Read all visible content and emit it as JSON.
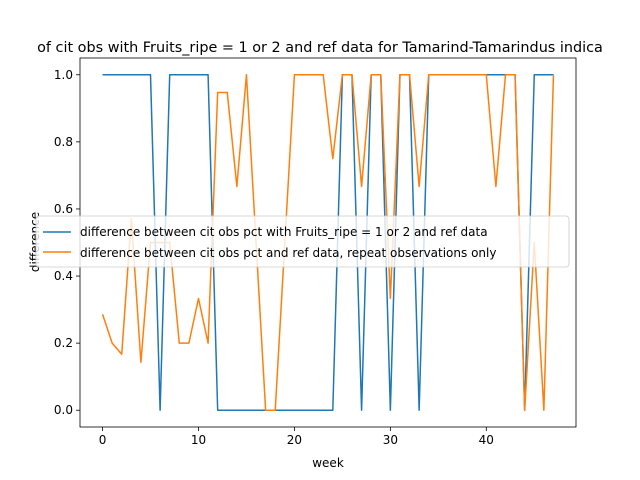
{
  "chart_data": {
    "type": "line",
    "title": "of cit obs with Fruits_ripe = 1 or 2 and ref data for Tamarind-Tamarindus indica",
    "xlabel": "week",
    "ylabel": "difference",
    "xlim": [
      -2.35,
      49.35
    ],
    "ylim": [
      -0.05,
      1.05
    ],
    "xticks": [
      0,
      10,
      20,
      30,
      40
    ],
    "yticks": [
      0.0,
      0.2,
      0.4,
      0.6,
      0.8,
      1.0
    ],
    "xtick_labels": [
      "0",
      "10",
      "20",
      "30",
      "40"
    ],
    "ytick_labels": [
      "0.0",
      "0.2",
      "0.4",
      "0.6",
      "0.8",
      "1.0"
    ],
    "grid": false,
    "legend_position": "center",
    "series": [
      {
        "name": "difference between cit obs pct with Fruits_ripe = 1 or 2 and ref data",
        "color": "#1f77b4",
        "x": [
          0,
          1,
          2,
          3,
          4,
          5,
          6,
          7,
          8,
          9,
          10,
          11,
          12,
          13,
          14,
          15,
          16,
          17,
          18,
          19,
          20,
          21,
          22,
          23,
          24,
          25,
          26,
          27,
          28,
          29,
          30,
          31,
          32,
          33,
          34,
          35,
          36,
          37,
          38,
          39,
          40,
          41,
          42,
          43,
          44,
          45,
          46,
          47
        ],
        "y": [
          1,
          1,
          1,
          1,
          1,
          1,
          0,
          1,
          1,
          1,
          1,
          1,
          0,
          0,
          0,
          0,
          0,
          0,
          0,
          0,
          0,
          0,
          0,
          0,
          0,
          1,
          1,
          0,
          1,
          1,
          0,
          1,
          1,
          0,
          1,
          1,
          1,
          1,
          1,
          1,
          1,
          1,
          1,
          1,
          0,
          1,
          1,
          1
        ]
      },
      {
        "name": "difference between cit obs pct and ref data, repeat observations only",
        "color": "#ff7f0e",
        "x": [
          0,
          1,
          2,
          3,
          4,
          5,
          6,
          7,
          8,
          9,
          10,
          11,
          12,
          13,
          14,
          15,
          16,
          17,
          18,
          19,
          20,
          21,
          22,
          23,
          24,
          25,
          26,
          27,
          28,
          29,
          30,
          31,
          32,
          33,
          34,
          35,
          36,
          37,
          38,
          39,
          40,
          41,
          42,
          43,
          44,
          45,
          46,
          47
        ],
        "y": [
          0.286,
          0.2,
          0.167,
          0.571,
          0.143,
          0.5,
          0.5,
          0.5,
          0.2,
          0.2,
          0.333,
          0.2,
          0.947,
          0.947,
          0.667,
          1,
          0.5,
          0,
          0,
          0.5,
          1,
          1,
          1,
          1,
          0.75,
          1,
          1,
          0.667,
          1,
          1,
          0.333,
          1,
          1,
          0.667,
          1,
          1,
          1,
          1,
          1,
          1,
          1,
          0.667,
          1,
          1,
          0,
          0.5,
          0,
          1
        ]
      }
    ]
  }
}
